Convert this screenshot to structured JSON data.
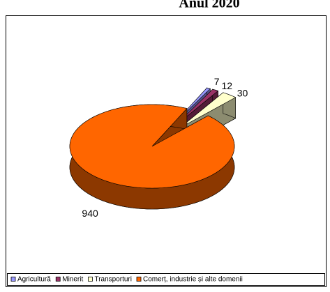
{
  "chart_data": {
    "type": "pie",
    "title": "Anul 2020",
    "categories": [
      "Agricultură",
      "Minerit",
      "Transporturi",
      "Comerț, industrie și alte domenii"
    ],
    "values": [
      7,
      12,
      30,
      940
    ],
    "colors": [
      "#9999ff",
      "#993366",
      "#ffffcc",
      "#ff6600"
    ],
    "legend": "bottom"
  }
}
